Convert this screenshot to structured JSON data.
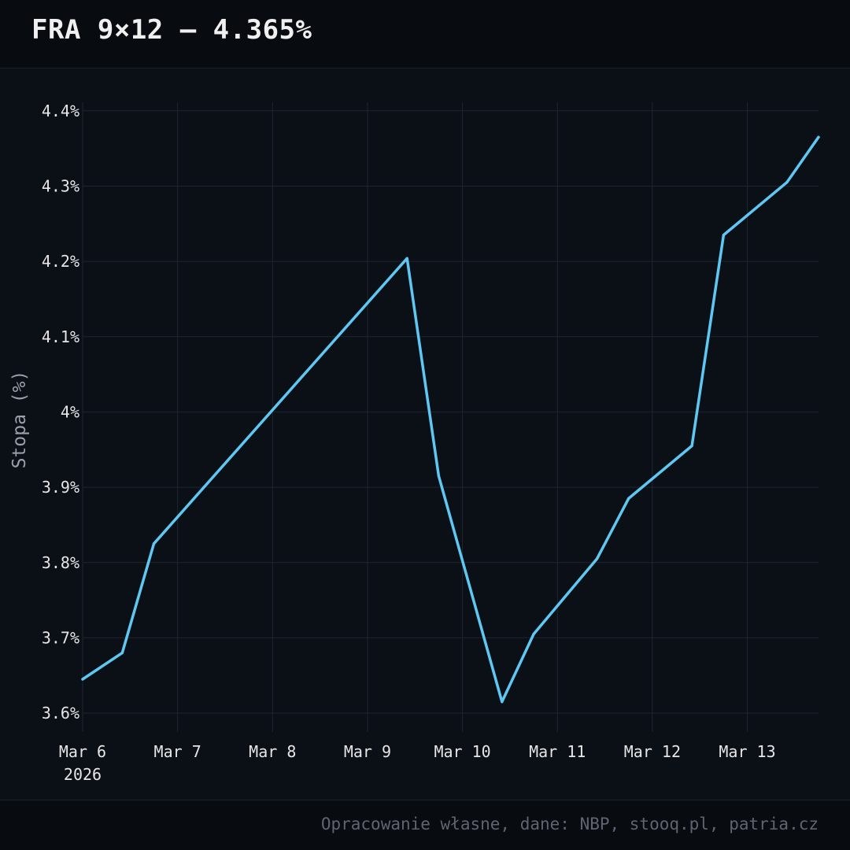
{
  "header": {
    "title": "FRA 9×12 — 4.365%"
  },
  "footer": {
    "source": "Opracowanie własne, dane: NBP, stooq.pl, patria.cz"
  },
  "colors": {
    "background": "#0b0f16",
    "line": "#5ec8f2",
    "grid": "#1f2631",
    "tick_text": "#e6e6e6",
    "axis_label": "#9aa0a8"
  },
  "chart_data": {
    "type": "line",
    "title": "FRA 9×12 — 4.365%",
    "xlabel": "",
    "ylabel": "Stopa (%)",
    "x_ticks": [
      {
        "date": "2026-03-06",
        "label": "Mar 6",
        "sublabel": "2026"
      },
      {
        "date": "2026-03-07",
        "label": "Mar 7"
      },
      {
        "date": "2026-03-08",
        "label": "Mar 8"
      },
      {
        "date": "2026-03-09",
        "label": "Mar 9"
      },
      {
        "date": "2026-03-10",
        "label": "Mar 10"
      },
      {
        "date": "2026-03-11",
        "label": "Mar 11"
      },
      {
        "date": "2026-03-12",
        "label": "Mar 12"
      },
      {
        "date": "2026-03-13",
        "label": "Mar 13"
      }
    ],
    "y_ticks": [
      {
        "value": 3.6,
        "label": "3.6%"
      },
      {
        "value": 3.7,
        "label": "3.7%"
      },
      {
        "value": 3.8,
        "label": "3.8%"
      },
      {
        "value": 3.9,
        "label": "3.9%"
      },
      {
        "value": 4.0,
        "label": "4%"
      },
      {
        "value": 4.1,
        "label": "4.1%"
      },
      {
        "value": 4.2,
        "label": "4.2%"
      },
      {
        "value": 4.3,
        "label": "4.3%"
      },
      {
        "value": 4.4,
        "label": "4.4%"
      }
    ],
    "xlim": [
      "2026-03-06T00:00",
      "2026-03-13T18:00"
    ],
    "ylim": [
      3.575,
      4.405
    ],
    "grid": true,
    "series": [
      {
        "x": [
          "2026-03-06T00:00",
          "2026-03-06T10:00",
          "2026-03-06T18:00",
          "2026-03-09T10:00",
          "2026-03-09T18:00",
          "2026-03-10T10:00",
          "2026-03-10T18:00",
          "2026-03-11T10:00",
          "2026-03-11T18:00",
          "2026-03-12T10:00",
          "2026-03-12T18:00",
          "2026-03-13T10:00",
          "2026-03-13T18:00"
        ],
        "y": [
          3.645,
          3.68,
          3.825,
          4.204,
          3.915,
          3.615,
          3.705,
          3.805,
          3.885,
          3.955,
          4.235,
          4.305,
          4.365
        ]
      }
    ]
  }
}
